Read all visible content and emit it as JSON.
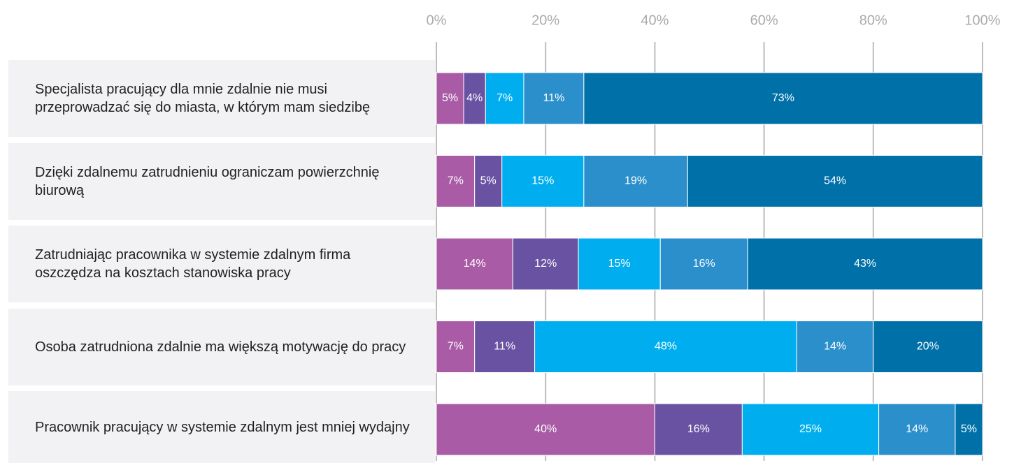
{
  "chart_data": {
    "type": "stacked-bar-horizontal",
    "categories": [
      "Specjalista pracujący dla mnie zdalnie nie musi przeprowadzać się do miasta, w którym mam siedzibę",
      "Dzięki zdalnemu zatrudnieniu ograniczam powierzchnię biurową",
      "Zatrudniając pracownika w systemie zdalnym firma oszczędza na kosztach stanowiska pracy",
      "Osoba zatrudniona zdalnie ma większą motywację do pracy",
      "Pracownik pracujący w systemie zdalnym jest mniej wydajny"
    ],
    "series": [
      {
        "color": "#a95ca5",
        "values": [
          5,
          7,
          14,
          7,
          40
        ],
        "value_labels": [
          "5%",
          "7%",
          "14%",
          "7%",
          "40%"
        ]
      },
      {
        "color": "#6a52a3",
        "values": [
          4,
          5,
          12,
          11,
          16
        ],
        "value_labels": [
          "4%",
          "5%",
          "12%",
          "11%",
          "16%"
        ]
      },
      {
        "color": "#00aeef",
        "values": [
          7,
          15,
          15,
          48,
          25
        ],
        "value_labels": [
          "7%",
          "15%",
          "15%",
          "48%",
          "25%"
        ]
      },
      {
        "color": "#2b8fcb",
        "values": [
          11,
          19,
          16,
          14,
          14
        ],
        "value_labels": [
          "11%",
          "19%",
          "16%",
          "14%",
          "14%"
        ]
      },
      {
        "color": "#0070a8",
        "values": [
          73,
          54,
          43,
          20,
          5
        ],
        "value_labels": [
          "73%",
          "54%",
          "43%",
          "20%",
          "5%"
        ]
      }
    ],
    "xlim": [
      0,
      100
    ],
    "xticks": [
      {
        "value": 0,
        "label": "0%"
      },
      {
        "value": 20,
        "label": "20%"
      },
      {
        "value": 40,
        "label": "40%"
      },
      {
        "value": 60,
        "label": "60%"
      },
      {
        "value": 80,
        "label": "80%"
      },
      {
        "value": 100,
        "label": "100%"
      }
    ],
    "grid": true
  }
}
